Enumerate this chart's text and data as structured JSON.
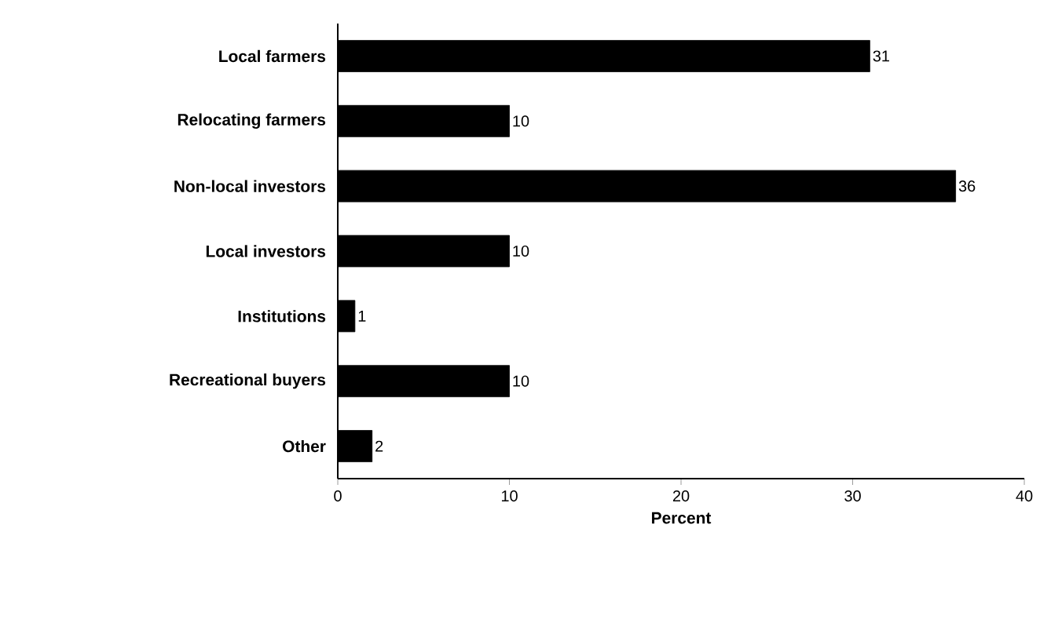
{
  "chart_data": {
    "type": "bar",
    "orientation": "horizontal",
    "xlabel": "Percent",
    "categories": [
      "Local farmers",
      "Relocating farmers",
      "Non-local investors",
      "Local investors",
      "Institutions",
      "Recreational buyers",
      "Other"
    ],
    "values": [
      31,
      10,
      36,
      10,
      1,
      10,
      2
    ],
    "color": "#000000",
    "xlim": [
      0,
      40
    ],
    "xticks": [
      0,
      10,
      20,
      30,
      40
    ],
    "data_labels": true,
    "grid": false
  }
}
